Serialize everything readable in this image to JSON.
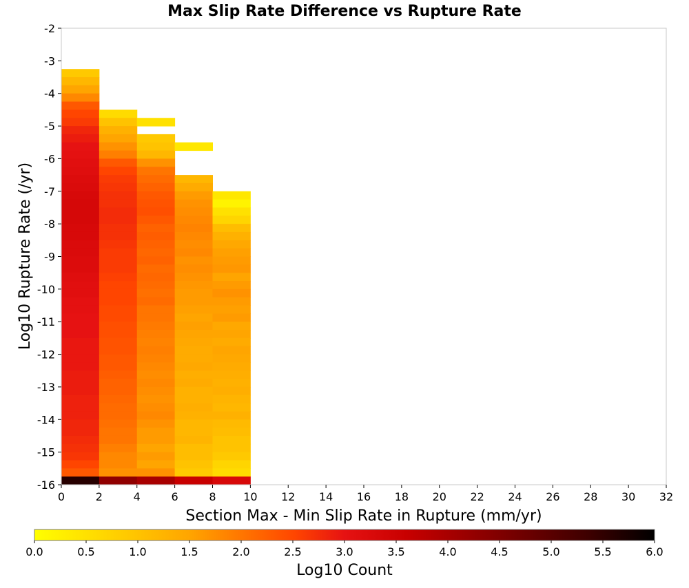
{
  "chart_data": {
    "type": "heatmap",
    "title": "Max Slip Rate Difference vs Rupture Rate",
    "xlabel": "Section Max - Min Slip Rate in Rupture (mm/yr)",
    "ylabel": "Log10 Rupture Rate (/yr)",
    "xlim": [
      0,
      32
    ],
    "ylim": [
      -16,
      -2
    ],
    "x_ticks": [
      "0",
      "2",
      "4",
      "6",
      "8",
      "10",
      "12",
      "14",
      "16",
      "18",
      "20",
      "22",
      "24",
      "26",
      "28",
      "30",
      "32"
    ],
    "y_ticks": [
      "-2",
      "-3",
      "-4",
      "-5",
      "-6",
      "-7",
      "-8",
      "-9",
      "-10",
      "-11",
      "-12",
      "-13",
      "-14",
      "-15",
      "-16"
    ],
    "x_bin_width": 2,
    "y_bin_height": 0.25,
    "colorbar": {
      "label": "Log10 Count",
      "range": [
        0.0,
        6.0
      ],
      "ticks": [
        "0.0",
        "0.5",
        "1.0",
        "1.5",
        "2.0",
        "2.5",
        "3.0",
        "3.5",
        "4.0",
        "4.5",
        "5.0",
        "5.5",
        "6.0"
      ],
      "colormap": "yellow-orange-red-black"
    },
    "grid": false,
    "columns": [
      {
        "x": [
          0,
          2
        ],
        "rows_top_to_bottom": [
          0.9,
          1.2,
          1.5,
          1.8,
          2.3,
          2.5,
          2.6,
          2.8,
          2.9,
          3.0,
          3.05,
          3.1,
          3.15,
          3.2,
          3.25,
          3.3,
          3.35,
          3.35,
          3.35,
          3.3,
          3.3,
          3.25,
          3.25,
          3.2,
          3.2,
          3.15,
          3.1,
          3.1,
          3.05,
          3.05,
          3.0,
          3.0,
          3.0,
          2.95,
          2.95,
          2.95,
          2.95,
          2.9,
          2.9,
          2.9,
          2.85,
          2.85,
          2.85,
          2.8,
          2.8,
          2.75,
          2.7,
          2.65,
          2.5,
          2.3,
          5.6
        ]
      },
      {
        "x": [
          2,
          4
        ],
        "rows_top_to_bottom": [
          0.6,
          1.0,
          1.3,
          1.5,
          1.7,
          1.9,
          2.3,
          2.5,
          2.6,
          2.65,
          2.7,
          2.7,
          2.75,
          2.75,
          2.7,
          2.7,
          2.65,
          2.6,
          2.6,
          2.6,
          2.55,
          2.5,
          2.5,
          2.5,
          2.45,
          2.45,
          2.4,
          2.4,
          2.35,
          2.35,
          2.3,
          2.3,
          2.25,
          2.2,
          2.2,
          2.15,
          2.1,
          2.1,
          2.05,
          2.0,
          2.0,
          1.9,
          1.8,
          1.8,
          1.7,
          4.3
        ]
      },
      {
        "x": [
          4,
          6
        ],
        "rows_top_to_bottom": [
          0.5,
          0.0,
          0.9,
          1.0,
          1.2,
          1.7,
          2.0,
          2.1,
          2.2,
          2.3,
          2.35,
          2.4,
          2.3,
          2.2,
          2.25,
          2.2,
          2.15,
          2.2,
          2.1,
          2.15,
          2.1,
          2.05,
          2.1,
          2.0,
          2.0,
          1.95,
          1.9,
          1.85,
          1.9,
          1.85,
          1.8,
          1.75,
          1.8,
          1.75,
          1.7,
          1.75,
          1.8,
          1.7,
          1.6,
          1.6,
          1.5,
          1.6,
          1.5,
          1.7,
          4.0
        ]
      },
      {
        "x": [
          6,
          8
        ],
        "rows_top_to_bottom": [
          0.4,
          0.0,
          0.0,
          0.0,
          1.2,
          1.4,
          1.6,
          1.7,
          1.75,
          1.8,
          1.85,
          1.8,
          1.75,
          1.8,
          1.7,
          1.75,
          1.7,
          1.65,
          1.6,
          1.6,
          1.55,
          1.5,
          1.55,
          1.5,
          1.45,
          1.4,
          1.4,
          1.45,
          1.35,
          1.4,
          1.3,
          1.3,
          1.35,
          1.3,
          1.2,
          1.2,
          1.25,
          1.1,
          1.1,
          1.0,
          0.9,
          3.6
        ]
      },
      {
        "x": [
          8,
          10
        ],
        "rows_top_to_bottom": [
          0.4,
          0.2,
          0.5,
          0.7,
          1.1,
          1.3,
          1.45,
          1.55,
          1.6,
          1.65,
          1.5,
          1.6,
          1.7,
          1.6,
          1.55,
          1.6,
          1.45,
          1.5,
          1.4,
          1.5,
          1.45,
          1.4,
          1.35,
          1.3,
          1.35,
          1.25,
          1.2,
          1.3,
          1.15,
          1.1,
          1.0,
          1.0,
          0.9,
          0.7,
          0.6,
          3.3
        ]
      }
    ]
  }
}
